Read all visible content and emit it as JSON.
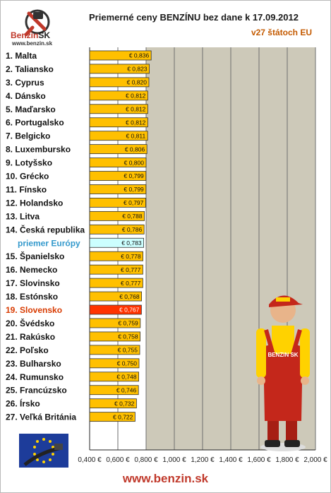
{
  "header": {
    "title": "Priemerné ceny BENZÍNU bez dane k 17.09.2012",
    "subtitle": "v27 štátoch EU",
    "logo_text": "Benzin",
    "logo_sk": "SK",
    "logo_url": "www.benzin.sk"
  },
  "footer": {
    "url": "www.benzin.sk"
  },
  "mascot": {
    "shirt_text": "BENZIN SK"
  },
  "colors": {
    "bar": "#ffc000",
    "bar_average": "#ccffff",
    "bar_highlight": "#ff3300",
    "plot_bg": "#cdc9b9",
    "label_average": "#3399cc",
    "label_highlight": "#d83a00"
  },
  "chart_data": {
    "type": "bar",
    "orientation": "horizontal",
    "title": "Priemerné ceny BENZÍNU bez dane k 17.09.2012",
    "subtitle": "v27 štátoch EU",
    "categories": [
      "1. Malta",
      "2. Taliansko",
      "3. Cyprus",
      "4. Dánsko",
      "5. Maďarsko",
      "6. Portugalsko",
      "7. Belgicko",
      "8. Luxembursko",
      "9. Lotyšsko",
      "10. Grécko",
      "11. Fínsko",
      "12. Holandsko",
      "13. Litva",
      "14. Česká republika",
      "priemer Európy",
      "15. Španielsko",
      "16. Nemecko",
      "17. Slovinsko",
      "18. Estónsko",
      "19. Slovensko",
      "20. Švédsko",
      "21. Rakúsko",
      "22. Poľsko",
      "23. Bulharsko",
      "24. Rumunsko",
      "25. Francúzsko",
      "26. Írsko",
      "27. Veľká Británia"
    ],
    "values": [
      0.836,
      0.823,
      0.82,
      0.812,
      0.812,
      0.812,
      0.811,
      0.806,
      0.8,
      0.799,
      0.799,
      0.797,
      0.788,
      0.786,
      0.783,
      0.778,
      0.777,
      0.777,
      0.768,
      0.767,
      0.759,
      0.758,
      0.755,
      0.75,
      0.748,
      0.746,
      0.732,
      0.722
    ],
    "value_labels": [
      "€ 0,836",
      "€ 0,823",
      "€ 0,820",
      "€ 0,812",
      "€ 0,812",
      "€ 0,812",
      "€ 0,811",
      "€ 0,806",
      "€ 0,800",
      "€ 0,799",
      "€ 0,799",
      "€ 0,797",
      "€ 0,788",
      "€ 0,786",
      "€ 0,783",
      "€ 0,778",
      "€ 0,777",
      "€ 0,777",
      "€ 0,768",
      "€ 0,767",
      "€ 0,759",
      "€ 0,758",
      "€ 0,755",
      "€ 0,750",
      "€ 0,748",
      "€ 0,746",
      "€ 0,732",
      "€ 0,722"
    ],
    "average_index": 14,
    "highlight_index": 19,
    "xlim": [
      0.4,
      2.0
    ],
    "xticks": [
      0.4,
      0.6,
      0.8,
      1.0,
      1.2,
      1.4,
      1.6,
      1.8,
      2.0
    ],
    "xtick_labels": [
      "0,400 €",
      "0,600 €",
      "0,800 €",
      "1,000 €",
      "1,200 €",
      "1,400 €",
      "1,600 €",
      "1,800 €",
      "2,000 €"
    ],
    "grid": true
  }
}
